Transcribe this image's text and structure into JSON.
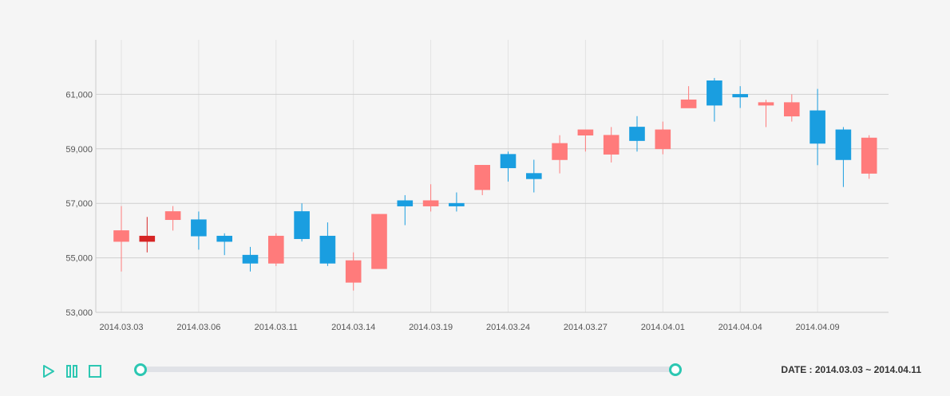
{
  "chart_data": {
    "type": "candlestick",
    "ylim": [
      53000,
      63000
    ],
    "y_ticks": [
      53000,
      55000,
      57000,
      59000,
      61000
    ],
    "y_tick_labels": [
      "53,000",
      "55,000",
      "57,000",
      "59,000",
      "61,000"
    ],
    "grid": true,
    "colors": {
      "up": "#ff7b7b",
      "up_dark": "#d62525",
      "down": "#1a9ee0"
    },
    "x_tick_labels": [
      {
        "index": 0,
        "label": "2014.03.03"
      },
      {
        "index": 3,
        "label": "2014.03.06"
      },
      {
        "index": 6,
        "label": "2014.03.11"
      },
      {
        "index": 9,
        "label": "2014.03.14"
      },
      {
        "index": 12,
        "label": "2014.03.19"
      },
      {
        "index": 15,
        "label": "2014.03.24"
      },
      {
        "index": 18,
        "label": "2014.03.27"
      },
      {
        "index": 21,
        "label": "2014.04.01"
      },
      {
        "index": 24,
        "label": "2014.04.04"
      },
      {
        "index": 27,
        "label": "2014.04.09"
      }
    ],
    "candles": [
      {
        "open": 55600,
        "high": 56900,
        "low": 54500,
        "close": 56000
      },
      {
        "open": 55600,
        "high": 56500,
        "low": 55200,
        "close": 55800,
        "highlight": true
      },
      {
        "open": 56400,
        "high": 56900,
        "low": 56000,
        "close": 56700
      },
      {
        "open": 56400,
        "high": 56700,
        "low": 55300,
        "close": 55800
      },
      {
        "open": 55800,
        "high": 55900,
        "low": 55100,
        "close": 55600
      },
      {
        "open": 55100,
        "high": 55400,
        "low": 54500,
        "close": 54800
      },
      {
        "open": 54800,
        "high": 55900,
        "low": 54700,
        "close": 55800
      },
      {
        "open": 56700,
        "high": 57000,
        "low": 55600,
        "close": 55700
      },
      {
        "open": 55800,
        "high": 56300,
        "low": 54700,
        "close": 54800
      },
      {
        "open": 54100,
        "high": 55200,
        "low": 53800,
        "close": 54900
      },
      {
        "open": 54600,
        "high": 56600,
        "low": 54600,
        "close": 56600
      },
      {
        "open": 57100,
        "high": 57300,
        "low": 56200,
        "close": 56900
      },
      {
        "open": 56900,
        "high": 57700,
        "low": 56700,
        "close": 57100
      },
      {
        "open": 57000,
        "high": 57400,
        "low": 56700,
        "close": 56900
      },
      {
        "open": 57500,
        "high": 58400,
        "low": 57300,
        "close": 58400
      },
      {
        "open": 58800,
        "high": 58900,
        "low": 57800,
        "close": 58300
      },
      {
        "open": 58100,
        "high": 58600,
        "low": 57400,
        "close": 57900
      },
      {
        "open": 58600,
        "high": 59500,
        "low": 58100,
        "close": 59200
      },
      {
        "open": 59500,
        "high": 59700,
        "low": 58900,
        "close": 59700
      },
      {
        "open": 58800,
        "high": 59800,
        "low": 58500,
        "close": 59500
      },
      {
        "open": 59800,
        "high": 60200,
        "low": 58900,
        "close": 59300
      },
      {
        "open": 59000,
        "high": 60000,
        "low": 58800,
        "close": 59700
      },
      {
        "open": 60500,
        "high": 61300,
        "low": 60500,
        "close": 60800
      },
      {
        "open": 61500,
        "high": 61600,
        "low": 60000,
        "close": 60600
      },
      {
        "open": 61000,
        "high": 61300,
        "low": 60500,
        "close": 60900
      },
      {
        "open": 60600,
        "high": 60800,
        "low": 59800,
        "close": 60700
      },
      {
        "open": 60200,
        "high": 61000,
        "low": 60000,
        "close": 60700
      },
      {
        "open": 60400,
        "high": 61200,
        "low": 58400,
        "close": 59200
      },
      {
        "open": 59700,
        "high": 59800,
        "low": 57600,
        "close": 58600
      },
      {
        "open": 58100,
        "high": 59500,
        "low": 57900,
        "close": 59400
      }
    ]
  },
  "slider": {
    "start": 0,
    "end": 1
  },
  "date_range_text": "DATE : 2014.03.03 ~ 2014.04.11",
  "icons": {
    "play": "play-icon",
    "pause": "pause-icon",
    "stop": "stop-icon"
  },
  "accent_color": "#2cc7b2"
}
